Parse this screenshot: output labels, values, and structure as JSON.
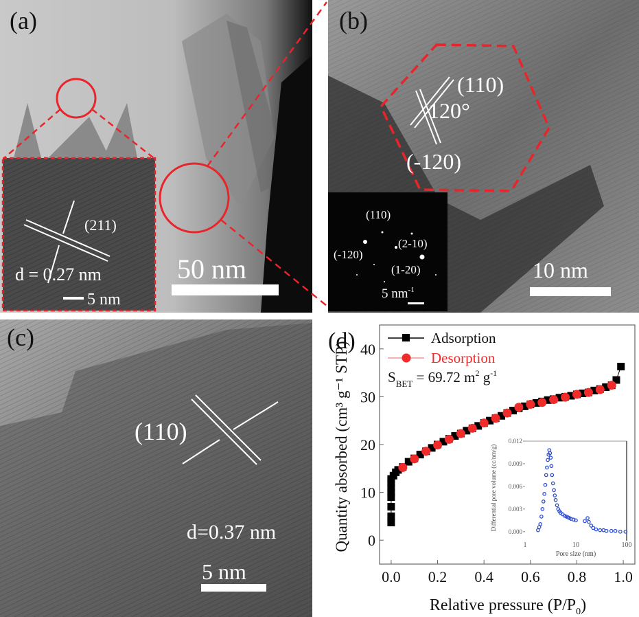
{
  "panel_a": {
    "label": "(a)",
    "inset_plane": "(211)",
    "inset_dspacing": "d = 0.27 nm",
    "inset_scale": "5 nm",
    "scale": "50 nm"
  },
  "panel_b": {
    "label": "(b)",
    "plane_1": "(110)",
    "angle": "120°",
    "plane_2": "(-120)",
    "saed_spots": [
      "(110)",
      "(-120)",
      "(2-10)",
      "(1-20)"
    ],
    "saed_scale": "5 nm",
    "saed_scale_unit": "-1",
    "scale": "10 nm"
  },
  "panel_c": {
    "label": "(c)",
    "plane": "(110)",
    "dspacing": "d=0.37 nm",
    "scale": "5 nm"
  },
  "colors": {
    "highlight": "#e8252a",
    "adsorption": "#000000",
    "desorption": "#ef2b2b",
    "psd": "#2f4fd8"
  },
  "chart_data": [
    {
      "type": "scatter",
      "label": "(d)",
      "xlabel": "Relative pressure (P/P",
      "xlabel_sub": "0",
      "xlabel_end": ")",
      "ylabel": "Quantity absorbed (cm³ g⁻¹ STP)",
      "xlim": [
        -0.05,
        1.05
      ],
      "ylim": [
        -5,
        45
      ],
      "xticks": [
        "0.0",
        "0.2",
        "0.4",
        "0.6",
        "0.8",
        "1.0"
      ],
      "yticks": [
        "0",
        "10",
        "20",
        "30",
        "40"
      ],
      "grid": false,
      "legend_placement": "top-left",
      "annotation": {
        "text": "S",
        "sub": "BET",
        "rest": " = 69.72 m",
        "sup1": "2",
        "mid": " g",
        "sup2": "-1"
      },
      "series": [
        {
          "name": "Adsorption",
          "marker": "square",
          "x": [
            0,
            0,
            0,
            0,
            0,
            0,
            0,
            0,
            0.01,
            0.02,
            0.03,
            0.05,
            0.075,
            0.1,
            0.125,
            0.15,
            0.175,
            0.2,
            0.225,
            0.25,
            0.275,
            0.3,
            0.325,
            0.35,
            0.375,
            0.4,
            0.425,
            0.45,
            0.475,
            0.5,
            0.525,
            0.55,
            0.575,
            0.6,
            0.625,
            0.65,
            0.675,
            0.7,
            0.725,
            0.75,
            0.775,
            0.8,
            0.825,
            0.85,
            0.875,
            0.9,
            0.925,
            0.95,
            0.97,
            0.99
          ],
          "y": [
            3.7,
            5,
            7,
            9,
            10,
            11,
            12,
            12.8,
            13.5,
            14.2,
            14.7,
            15.3,
            16.4,
            17.1,
            17.9,
            18.6,
            19.3,
            20.0,
            20.6,
            21.2,
            21.8,
            22.3,
            22.9,
            23.4,
            23.9,
            24.5,
            25.0,
            25.5,
            26.0,
            26.6,
            27.1,
            27.6,
            28.0,
            28.4,
            28.7,
            29.0,
            29.3,
            29.5,
            29.8,
            30.0,
            30.2,
            30.5,
            30.7,
            30.9,
            31.3,
            31.6,
            32.0,
            32.4,
            33.5,
            36.3
          ]
        },
        {
          "name": "Desorption",
          "marker": "circle",
          "x": [
            0.05,
            0.1,
            0.15,
            0.2,
            0.25,
            0.3,
            0.35,
            0.4,
            0.45,
            0.5,
            0.55,
            0.6,
            0.65,
            0.7,
            0.75,
            0.8,
            0.85,
            0.9,
            0.95
          ],
          "y": [
            15.2,
            17.0,
            18.6,
            19.9,
            21.1,
            22.3,
            23.4,
            24.5,
            25.5,
            26.6,
            27.8,
            28.4,
            28.8,
            29.4,
            29.9,
            30.5,
            30.9,
            31.5,
            32.4
          ]
        }
      ]
    },
    {
      "type": "scatter",
      "xlabel": "Pore size (nm)",
      "ylabel": "Differential pore volume (cc/nm/g)",
      "xscale": "log",
      "xlim": [
        1,
        100
      ],
      "ylim": [
        -0.0012,
        0.012
      ],
      "xticks": [
        "1",
        "10",
        "100"
      ],
      "yticks": [
        "0.000",
        "0.003",
        "0.006",
        "0.009",
        "0.012"
      ],
      "series": [
        {
          "marker": "circle",
          "x": [
            1.8,
            1.9,
            2.0,
            2.1,
            2.2,
            2.3,
            2.4,
            2.5,
            2.6,
            2.7,
            2.8,
            2.9,
            3.0,
            3.1,
            3.2,
            3.3,
            3.4,
            3.55,
            3.7,
            3.85,
            4.0,
            4.25,
            4.5,
            4.75,
            5,
            5.5,
            6,
            6.5,
            7,
            7.5,
            8,
            9,
            10,
            15,
            17,
            18,
            20,
            22,
            25,
            30,
            35,
            40,
            50,
            60,
            75,
            95
          ],
          "y": [
            0.0002,
            0.0006,
            0.001,
            0.002,
            0.003,
            0.004,
            0.005,
            0.0062,
            0.0075,
            0.0085,
            0.0095,
            0.0102,
            0.0108,
            0.0104,
            0.0098,
            0.0087,
            0.0075,
            0.0064,
            0.0055,
            0.0048,
            0.0042,
            0.0035,
            0.003,
            0.0027,
            0.0025,
            0.0023,
            0.0021,
            0.002,
            0.0019,
            0.0018,
            0.0017,
            0.0016,
            0.0015,
            0.0014,
            0.0018,
            0.0013,
            0.0008,
            0.0005,
            0.0003,
            0.0002,
            0.0002,
            0.0001,
            0.0001,
            0.0001,
            0,
            0
          ]
        }
      ]
    }
  ]
}
